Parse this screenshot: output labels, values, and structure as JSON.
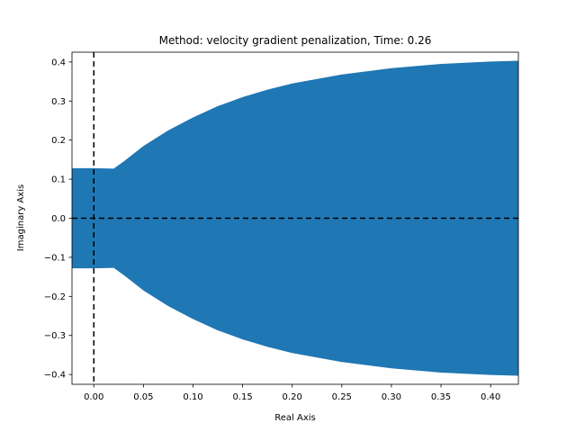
{
  "chart_data": {
    "type": "area",
    "title": "Method: velocity gradient penalization, Time: 0.26",
    "xlabel": "Real Axis",
    "ylabel": "Imaginary Axis",
    "xlim": [
      -0.022,
      0.428
    ],
    "ylim": [
      -0.425,
      0.425
    ],
    "grid": false,
    "fill_color": "#1f77b4",
    "reference_line_color": "#000000",
    "reference_lines": [
      {
        "orientation": "vertical",
        "value": 0.0,
        "style": "dashed"
      },
      {
        "orientation": "horizontal",
        "value": 0.0,
        "style": "dashed"
      }
    ],
    "xticks": [
      0.0,
      0.05,
      0.1,
      0.15,
      0.2,
      0.25,
      0.3,
      0.35,
      0.4
    ],
    "xtick_labels": [
      "0.00",
      "0.05",
      "0.10",
      "0.15",
      "0.20",
      "0.25",
      "0.30",
      "0.35",
      "0.40"
    ],
    "yticks": [
      -0.4,
      -0.3,
      -0.2,
      -0.1,
      0.0,
      0.1,
      0.2,
      0.3,
      0.4
    ],
    "ytick_labels": [
      "−0.4",
      "−0.3",
      "−0.2",
      "−0.1",
      "0.0",
      "0.1",
      "0.2",
      "0.3",
      "0.4"
    ],
    "region_boundary": {
      "x": [
        -0.022,
        0.0,
        0.02,
        0.03,
        0.05,
        0.075,
        0.1,
        0.125,
        0.15,
        0.175,
        0.2,
        0.25,
        0.3,
        0.35,
        0.4,
        0.428
      ],
      "upper": [
        0.128,
        0.128,
        0.127,
        0.145,
        0.185,
        0.225,
        0.258,
        0.287,
        0.31,
        0.329,
        0.345,
        0.368,
        0.384,
        0.395,
        0.401,
        0.403
      ],
      "lower": [
        -0.128,
        -0.128,
        -0.127,
        -0.145,
        -0.185,
        -0.225,
        -0.258,
        -0.287,
        -0.31,
        -0.329,
        -0.345,
        -0.368,
        -0.384,
        -0.395,
        -0.401,
        -0.403
      ]
    }
  }
}
